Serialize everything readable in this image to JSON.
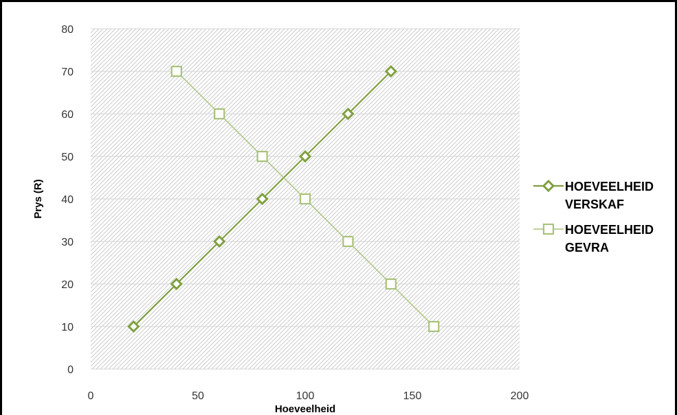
{
  "chart_data": {
    "type": "scatter",
    "xlabel": "Hoeveelheid",
    "ylabel": "Prys (R)",
    "xlim": [
      0,
      200
    ],
    "ylim": [
      0,
      80
    ],
    "x_ticks": [
      "0",
      "50",
      "100",
      "150",
      "200"
    ],
    "y_ticks": [
      "0",
      "10",
      "20",
      "30",
      "40",
      "50",
      "60",
      "70",
      "80"
    ],
    "grid": true,
    "legend_position": "right",
    "series": [
      {
        "name_lines": [
          "HOEVEELHEID",
          "VERSKAF"
        ],
        "marker": "diamond",
        "color": "#7f9f3f",
        "points": [
          [
            20,
            10
          ],
          [
            40,
            20
          ],
          [
            60,
            30
          ],
          [
            80,
            40
          ],
          [
            100,
            50
          ],
          [
            120,
            60
          ],
          [
            140,
            70
          ]
        ]
      },
      {
        "name_lines": [
          "HOEVEELHEID",
          "GEVRA"
        ],
        "marker": "square",
        "color": "#a9c27a",
        "points": [
          [
            40,
            70
          ],
          [
            60,
            60
          ],
          [
            80,
            50
          ],
          [
            100,
            40
          ],
          [
            120,
            30
          ],
          [
            140,
            20
          ],
          [
            160,
            10
          ]
        ]
      }
    ]
  }
}
